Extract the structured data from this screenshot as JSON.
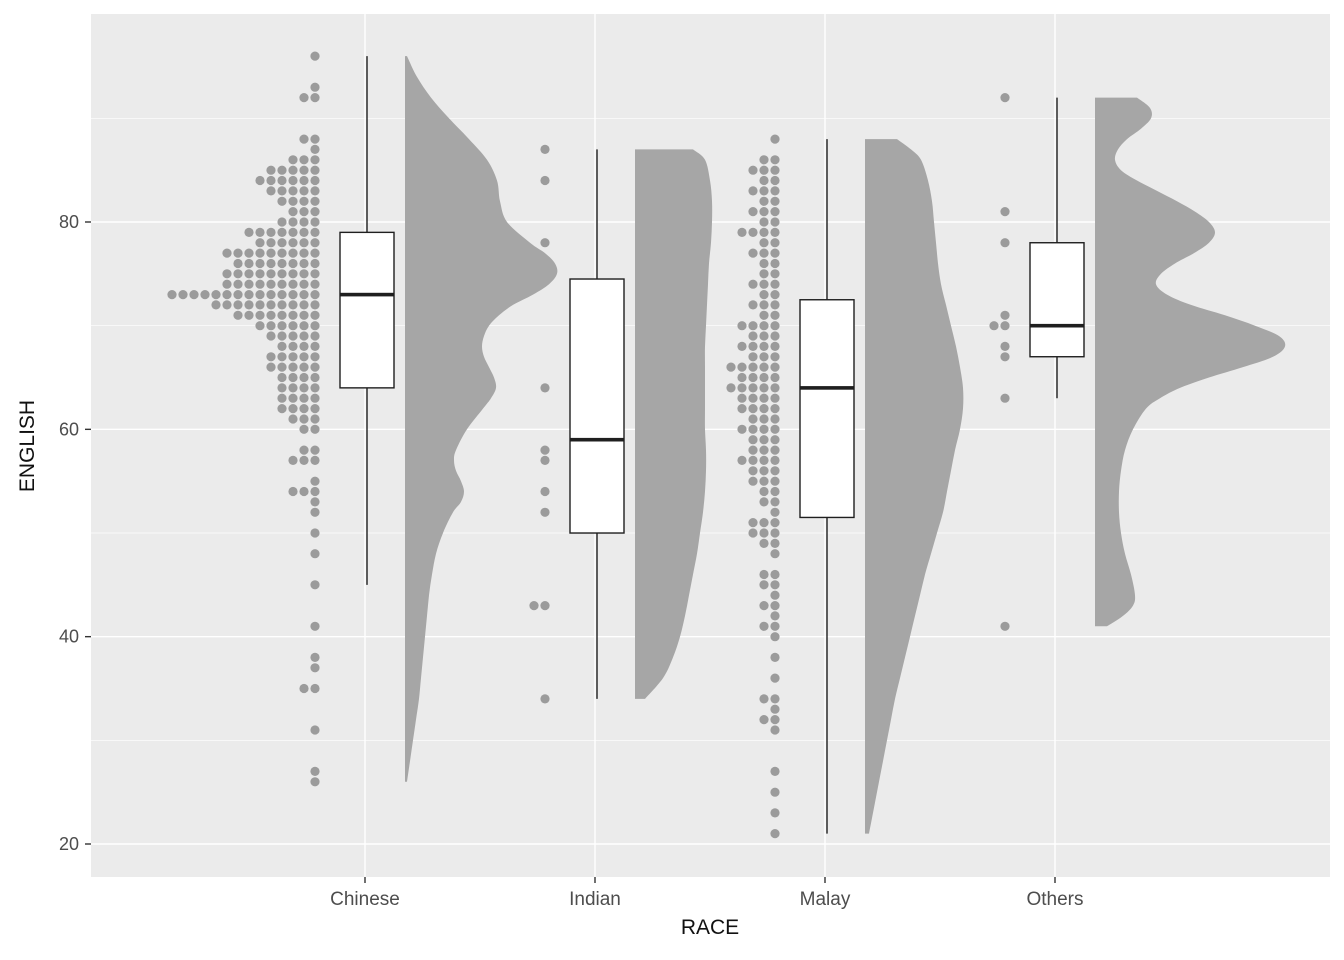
{
  "colors": {
    "panel_bg": "#EBEBEB",
    "grid": "#FFFFFF",
    "dot": "#9B9B9B",
    "violin": "#A6A6A6",
    "box_fill": "#FFFFFF",
    "box_stroke": "#1F1F1F",
    "tick_mark": "#333333",
    "tick_text": "#4D4D4D",
    "title_text": "#111111"
  },
  "chart_data": {
    "type": "raincloud",
    "subtype": "dotplot + boxplot + half-violin per category",
    "xlabel": "RACE",
    "ylabel": "ENGLISH",
    "categories": [
      "Chinese",
      "Indian",
      "Malay",
      "Others"
    ],
    "y_ticks": [
      20,
      40,
      60,
      80
    ],
    "y_minor_ticks": [
      30,
      50,
      70,
      90
    ],
    "ylim": [
      17,
      100
    ],
    "legend": "none",
    "groups": [
      {
        "name": "Chinese",
        "box": {
          "whisker_low": 45,
          "q1": 64,
          "median": 73,
          "q3": 79,
          "whisker_high": 96
        },
        "dots": [
          [
            96,
            1
          ],
          [
            93,
            1
          ],
          [
            92,
            2
          ],
          [
            88,
            2
          ],
          [
            87,
            1
          ],
          [
            86,
            3
          ],
          [
            85,
            5
          ],
          [
            84,
            6
          ],
          [
            83,
            5
          ],
          [
            82,
            4
          ],
          [
            81,
            3
          ],
          [
            80,
            4
          ],
          [
            79,
            7
          ],
          [
            78,
            6
          ],
          [
            77,
            9
          ],
          [
            76,
            8
          ],
          [
            75,
            9
          ],
          [
            74,
            9
          ],
          [
            73,
            14
          ],
          [
            72,
            10
          ],
          [
            71,
            8
          ],
          [
            70,
            6
          ],
          [
            69,
            5
          ],
          [
            68,
            4
          ],
          [
            67,
            5
          ],
          [
            66,
            5
          ],
          [
            65,
            4
          ],
          [
            64,
            4
          ],
          [
            63,
            4
          ],
          [
            62,
            4
          ],
          [
            61,
            3
          ],
          [
            60,
            2
          ],
          [
            58,
            2
          ],
          [
            57,
            3
          ],
          [
            55,
            1
          ],
          [
            54,
            3
          ],
          [
            53,
            1
          ],
          [
            52,
            1
          ],
          [
            50,
            1
          ],
          [
            48,
            1
          ],
          [
            45,
            1
          ],
          [
            41,
            1
          ],
          [
            38,
            1
          ],
          [
            37,
            1
          ],
          [
            35,
            2
          ],
          [
            31,
            1
          ],
          [
            27,
            1
          ],
          [
            26,
            1
          ]
        ],
        "violin": [
          [
            96,
            2
          ],
          [
            94,
            12
          ],
          [
            92,
            26
          ],
          [
            90,
            44
          ],
          [
            88,
            64
          ],
          [
            86,
            82
          ],
          [
            84,
            92
          ],
          [
            82,
            95
          ],
          [
            80,
            102
          ],
          [
            78,
            125
          ],
          [
            77,
            140
          ],
          [
            76,
            150
          ],
          [
            75,
            152
          ],
          [
            74,
            144
          ],
          [
            73,
            128
          ],
          [
            72,
            108
          ],
          [
            71,
            94
          ],
          [
            70,
            84
          ],
          [
            69,
            79
          ],
          [
            68,
            77
          ],
          [
            67,
            79
          ],
          [
            66,
            84
          ],
          [
            65,
            89
          ],
          [
            64,
            91
          ],
          [
            63,
            86
          ],
          [
            62,
            78
          ],
          [
            60,
            62
          ],
          [
            58,
            51
          ],
          [
            57,
            49
          ],
          [
            56,
            51
          ],
          [
            55,
            56
          ],
          [
            54,
            59
          ],
          [
            53,
            56
          ],
          [
            52,
            48
          ],
          [
            50,
            38
          ],
          [
            48,
            31
          ],
          [
            46,
            27
          ],
          [
            44,
            24
          ],
          [
            42,
            22
          ],
          [
            40,
            20
          ],
          [
            38,
            18
          ],
          [
            36,
            16
          ],
          [
            34,
            14
          ],
          [
            32,
            11
          ],
          [
            30,
            8
          ],
          [
            28,
            5
          ],
          [
            26,
            2
          ]
        ]
      },
      {
        "name": "Indian",
        "box": {
          "whisker_low": 34,
          "q1": 50,
          "median": 59,
          "q3": 74.5,
          "whisker_high": 87
        },
        "dots": [
          [
            87,
            1
          ],
          [
            84,
            1
          ],
          [
            78,
            1
          ],
          [
            64,
            1
          ],
          [
            58,
            1
          ],
          [
            57,
            1
          ],
          [
            54,
            1
          ],
          [
            52,
            1
          ],
          [
            43,
            2
          ],
          [
            34,
            1
          ]
        ],
        "violin": [
          [
            87,
            58
          ],
          [
            86,
            70
          ],
          [
            84,
            75
          ],
          [
            82,
            77
          ],
          [
            80,
            77
          ],
          [
            78,
            76
          ],
          [
            76,
            74
          ],
          [
            74,
            73
          ],
          [
            72,
            72
          ],
          [
            70,
            71
          ],
          [
            68,
            70
          ],
          [
            66,
            70
          ],
          [
            64,
            70
          ],
          [
            62,
            70
          ],
          [
            60,
            70
          ],
          [
            58,
            71
          ],
          [
            56,
            71
          ],
          [
            54,
            70
          ],
          [
            52,
            68
          ],
          [
            50,
            65
          ],
          [
            48,
            62
          ],
          [
            46,
            58
          ],
          [
            44,
            54
          ],
          [
            42,
            50
          ],
          [
            40,
            45
          ],
          [
            38,
            38
          ],
          [
            36,
            28
          ],
          [
            34,
            10
          ]
        ]
      },
      {
        "name": "Malay",
        "box": {
          "whisker_low": 21,
          "q1": 51.5,
          "median": 64,
          "q3": 72.5,
          "whisker_high": 88
        },
        "dots": [
          [
            88,
            1
          ],
          [
            86,
            2
          ],
          [
            85,
            3
          ],
          [
            84,
            2
          ],
          [
            83,
            3
          ],
          [
            82,
            2
          ],
          [
            81,
            3
          ],
          [
            80,
            2
          ],
          [
            79,
            4
          ],
          [
            78,
            2
          ],
          [
            77,
            3
          ],
          [
            76,
            2
          ],
          [
            75,
            2
          ],
          [
            74,
            3
          ],
          [
            73,
            2
          ],
          [
            72,
            3
          ],
          [
            71,
            2
          ],
          [
            70,
            4
          ],
          [
            69,
            3
          ],
          [
            68,
            4
          ],
          [
            67,
            3
          ],
          [
            66,
            5
          ],
          [
            65,
            4
          ],
          [
            64,
            5
          ],
          [
            63,
            4
          ],
          [
            62,
            4
          ],
          [
            61,
            3
          ],
          [
            60,
            4
          ],
          [
            59,
            3
          ],
          [
            58,
            3
          ],
          [
            57,
            4
          ],
          [
            56,
            3
          ],
          [
            55,
            3
          ],
          [
            54,
            2
          ],
          [
            53,
            2
          ],
          [
            52,
            1
          ],
          [
            51,
            3
          ],
          [
            50,
            3
          ],
          [
            49,
            2
          ],
          [
            48,
            1
          ],
          [
            46,
            2
          ],
          [
            45,
            2
          ],
          [
            44,
            1
          ],
          [
            43,
            2
          ],
          [
            42,
            1
          ],
          [
            41,
            2
          ],
          [
            40,
            1
          ],
          [
            38,
            1
          ],
          [
            36,
            1
          ],
          [
            34,
            2
          ],
          [
            33,
            1
          ],
          [
            32,
            2
          ],
          [
            31,
            1
          ],
          [
            27,
            1
          ],
          [
            25,
            1
          ],
          [
            23,
            1
          ],
          [
            21,
            1
          ]
        ],
        "violin": [
          [
            88,
            32
          ],
          [
            87,
            46
          ],
          [
            86,
            56
          ],
          [
            84,
            63
          ],
          [
            82,
            67
          ],
          [
            80,
            69
          ],
          [
            78,
            71
          ],
          [
            76,
            73
          ],
          [
            74,
            76
          ],
          [
            72,
            81
          ],
          [
            70,
            86
          ],
          [
            68,
            91
          ],
          [
            66,
            95
          ],
          [
            64,
            98
          ],
          [
            62,
            98
          ],
          [
            60,
            95
          ],
          [
            58,
            90
          ],
          [
            56,
            86
          ],
          [
            54,
            82
          ],
          [
            52,
            78
          ],
          [
            50,
            72
          ],
          [
            48,
            66
          ],
          [
            46,
            60
          ],
          [
            44,
            55
          ],
          [
            42,
            50
          ],
          [
            40,
            45
          ],
          [
            38,
            40
          ],
          [
            36,
            35
          ],
          [
            34,
            30
          ],
          [
            32,
            26
          ],
          [
            30,
            22
          ],
          [
            28,
            18
          ],
          [
            26,
            14
          ],
          [
            24,
            10
          ],
          [
            22,
            6
          ],
          [
            21,
            4
          ]
        ]
      },
      {
        "name": "Others",
        "box": {
          "whisker_low": 63,
          "q1": 67,
          "median": 70,
          "q3": 78,
          "whisker_high": 92
        },
        "dots": [
          [
            92,
            1
          ],
          [
            81,
            1
          ],
          [
            78,
            1
          ],
          [
            71,
            1
          ],
          [
            70,
            2
          ],
          [
            68,
            1
          ],
          [
            67,
            1
          ],
          [
            63,
            1
          ],
          [
            41,
            1
          ]
        ],
        "violin": [
          [
            92,
            42
          ],
          [
            91,
            55
          ],
          [
            90,
            56
          ],
          [
            89,
            46
          ],
          [
            88,
            32
          ],
          [
            87,
            23
          ],
          [
            86,
            20
          ],
          [
            85,
            26
          ],
          [
            84,
            42
          ],
          [
            83,
            62
          ],
          [
            82,
            82
          ],
          [
            81,
            100
          ],
          [
            80,
            114
          ],
          [
            79,
            120
          ],
          [
            78,
            114
          ],
          [
            77,
            99
          ],
          [
            76,
            80
          ],
          [
            75,
            66
          ],
          [
            74,
            61
          ],
          [
            73,
            72
          ],
          [
            72,
            96
          ],
          [
            71,
            130
          ],
          [
            70,
            160
          ],
          [
            69,
            184
          ],
          [
            68,
            190
          ],
          [
            67,
            178
          ],
          [
            66,
            148
          ],
          [
            65,
            114
          ],
          [
            64,
            85
          ],
          [
            63,
            65
          ],
          [
            62,
            51
          ],
          [
            60,
            38
          ],
          [
            58,
            30
          ],
          [
            56,
            26
          ],
          [
            54,
            24
          ],
          [
            52,
            24
          ],
          [
            50,
            26
          ],
          [
            48,
            30
          ],
          [
            46,
            36
          ],
          [
            44,
            40
          ],
          [
            43,
            38
          ],
          [
            42,
            28
          ],
          [
            41,
            12
          ]
        ]
      }
    ]
  }
}
